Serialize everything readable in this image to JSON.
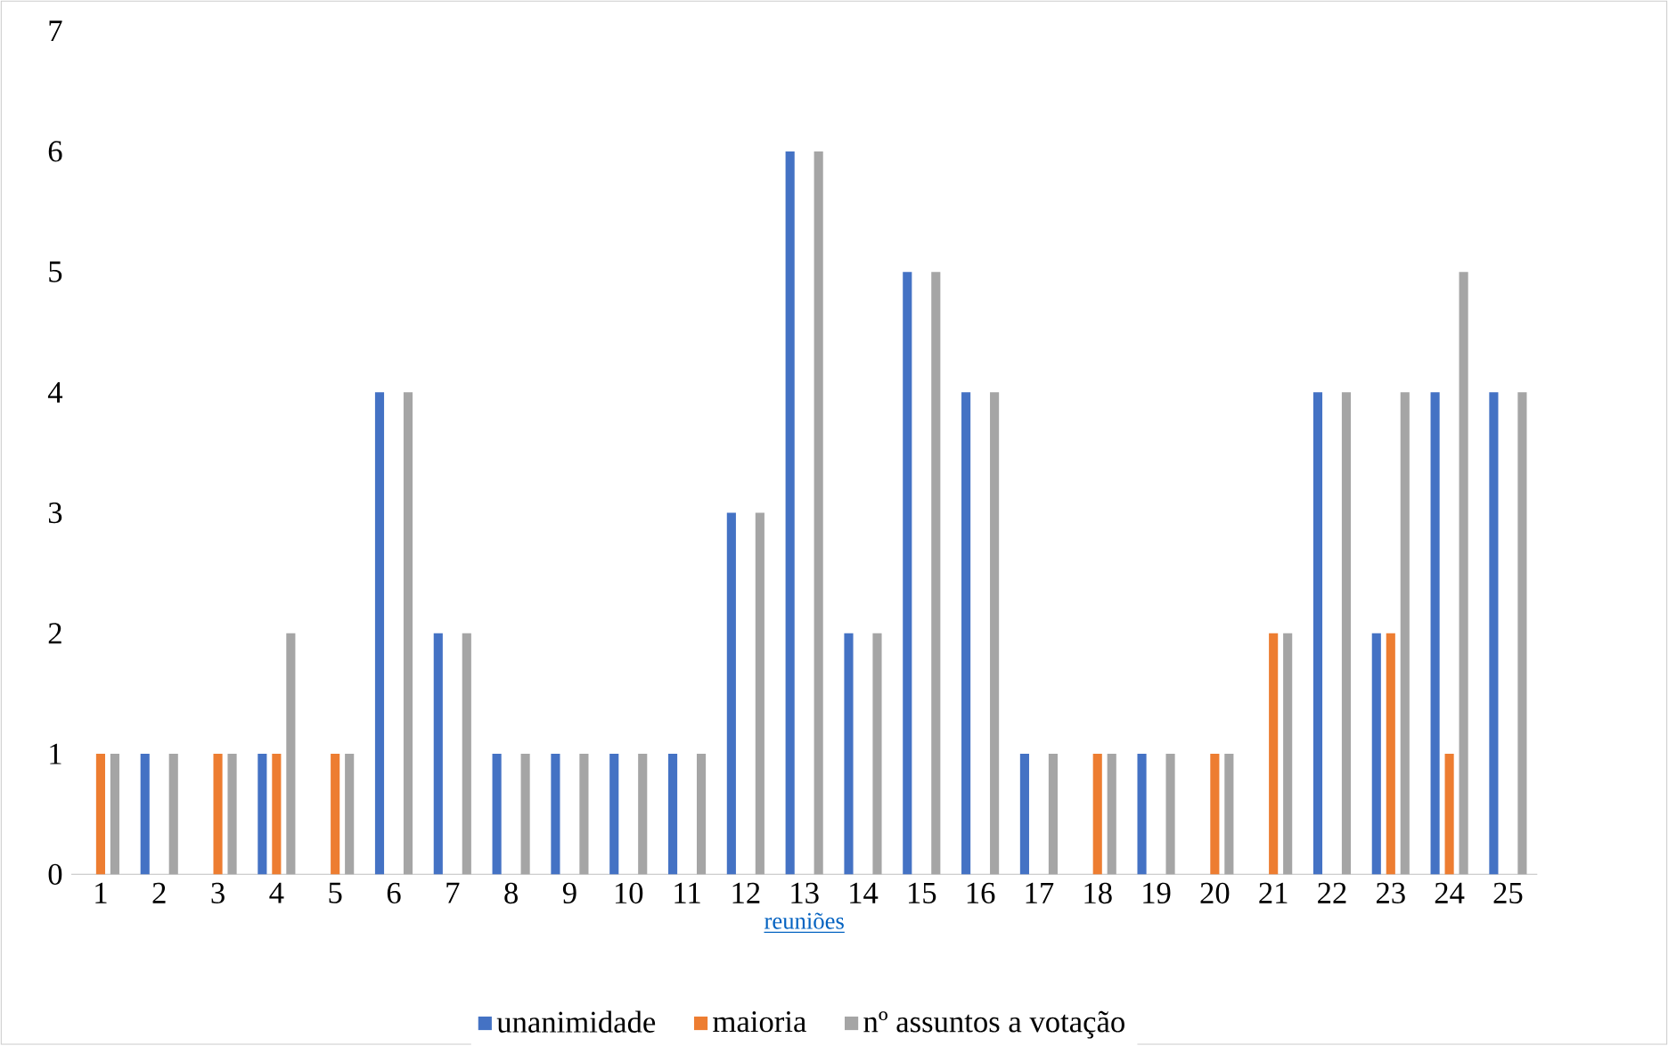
{
  "chart_data": {
    "type": "bar",
    "xlabel": "reuniões",
    "categories": [
      "1",
      "2",
      "3",
      "4",
      "5",
      "6",
      "7",
      "8",
      "9",
      "10",
      "11",
      "12",
      "13",
      "14",
      "15",
      "16",
      "17",
      "18",
      "19",
      "20",
      "21",
      "22",
      "23",
      "24",
      "25"
    ],
    "series": [
      {
        "name": "unanimidade",
        "color": "#4472c4",
        "values": [
          0,
          1,
          0,
          1,
          0,
          4,
          2,
          1,
          1,
          1,
          1,
          3,
          6,
          2,
          5,
          4,
          1,
          0,
          1,
          0,
          0,
          4,
          2,
          4,
          4
        ]
      },
      {
        "name": "maioria",
        "color": "#ed7d31",
        "values": [
          1,
          0,
          1,
          1,
          1,
          0,
          0,
          0,
          0,
          0,
          0,
          0,
          0,
          0,
          0,
          0,
          0,
          1,
          0,
          1,
          2,
          0,
          2,
          1,
          0
        ]
      },
      {
        "name": "nº assuntos a votação",
        "color": "#a5a5a5",
        "values": [
          1,
          1,
          1,
          2,
          1,
          4,
          2,
          1,
          1,
          1,
          1,
          3,
          6,
          2,
          5,
          4,
          1,
          1,
          1,
          1,
          2,
          4,
          4,
          5,
          4
        ]
      }
    ],
    "ylim": [
      0,
      7
    ],
    "yticks": [
      0,
      1,
      2,
      3,
      4,
      5,
      6,
      7
    ],
    "grid": false,
    "legend": "bottom"
  }
}
